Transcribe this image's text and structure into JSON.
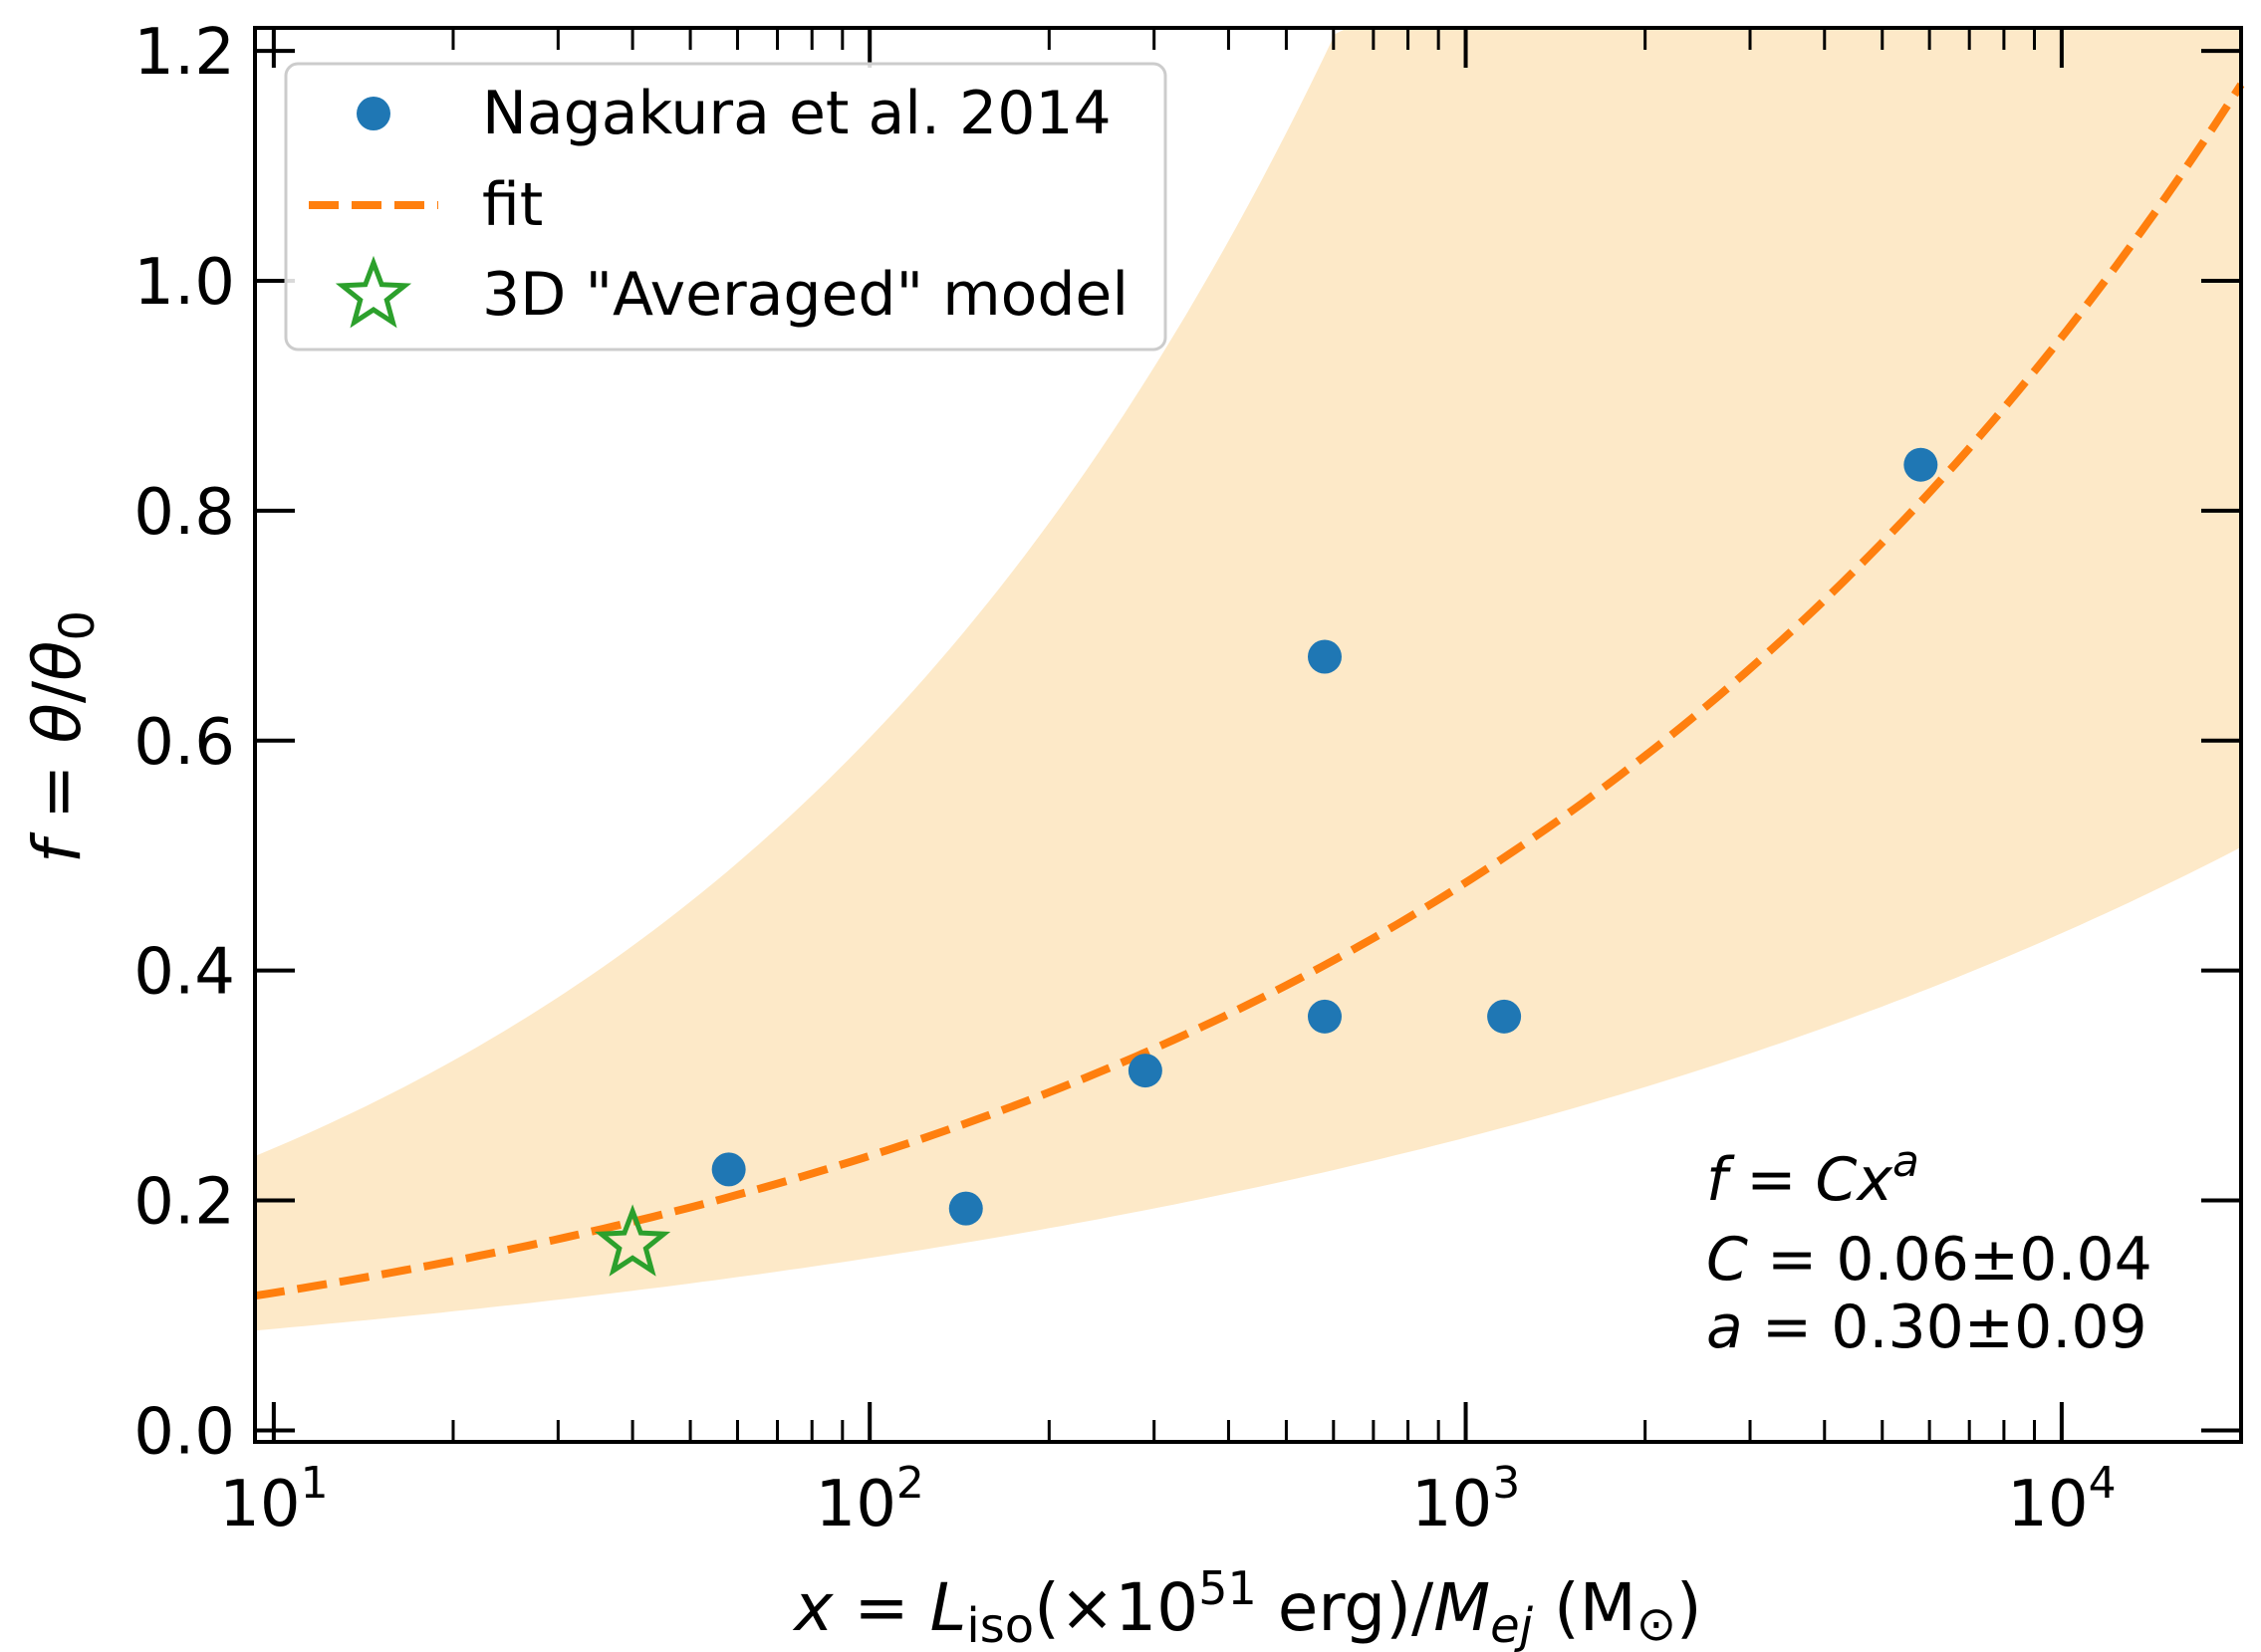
{
  "chart_data": {
    "type": "scatter",
    "title": "",
    "xscale": "log",
    "xlim": [
      9.3,
      20000
    ],
    "ylim": [
      -0.01,
      1.22
    ],
    "xlabel": {
      "var": "x",
      "eq": " = ",
      "L": "L",
      "Lsub": "iso",
      "mid": "(×10",
      "exp": "51",
      "unit": " erg)/",
      "M": "M",
      "Msub": "ej",
      "end": " (M",
      "sun": "⊙",
      "close": ")"
    },
    "ylabel": {
      "f": "f",
      "eq": " = ",
      "theta": "θ",
      "slash": "/",
      "theta0": "θ",
      "sub0": "0"
    },
    "xticks": [
      {
        "value": 10,
        "base": "10",
        "exp": "1"
      },
      {
        "value": 100,
        "base": "10",
        "exp": "2"
      },
      {
        "value": 1000,
        "base": "10",
        "exp": "3"
      },
      {
        "value": 10000,
        "base": "10",
        "exp": "4"
      }
    ],
    "yticks": [
      "0.0",
      "0.2",
      "0.4",
      "0.6",
      "0.8",
      "1.0",
      "1.2"
    ],
    "series": [
      {
        "name": "Nagakura et al. 2014",
        "kind": "scatter",
        "color": "#1f77b4",
        "points": [
          [
            58,
            0.227
          ],
          [
            145,
            0.193
          ],
          [
            290,
            0.313
          ],
          [
            580,
            0.673
          ],
          [
            580,
            0.36
          ],
          [
            1160,
            0.36
          ],
          [
            5800,
            0.84
          ]
        ]
      },
      {
        "name": "fit",
        "kind": "line",
        "color": "#ff7f0e",
        "dash": true,
        "C": 0.06,
        "a": 0.3
      },
      {
        "name": "3D \"Averaged\" model",
        "kind": "star",
        "color": "#2ca02c",
        "points": [
          [
            40,
            0.162
          ]
        ]
      }
    ],
    "band": {
      "color": "#fde9c8",
      "C_upper": 0.1,
      "a_upper": 0.39,
      "C_lower": 0.052,
      "a_lower": 0.23
    },
    "annotation": {
      "line1": {
        "f": "f",
        "eq": " = ",
        "C": "C",
        "x": "x",
        "a": "a"
      },
      "line2": {
        "C": "C",
        "eq": " = 0.06±0.04"
      },
      "line3": {
        "a": "a",
        "eq": " = 0.30±0.09"
      }
    },
    "legend_position": "upper-left"
  }
}
